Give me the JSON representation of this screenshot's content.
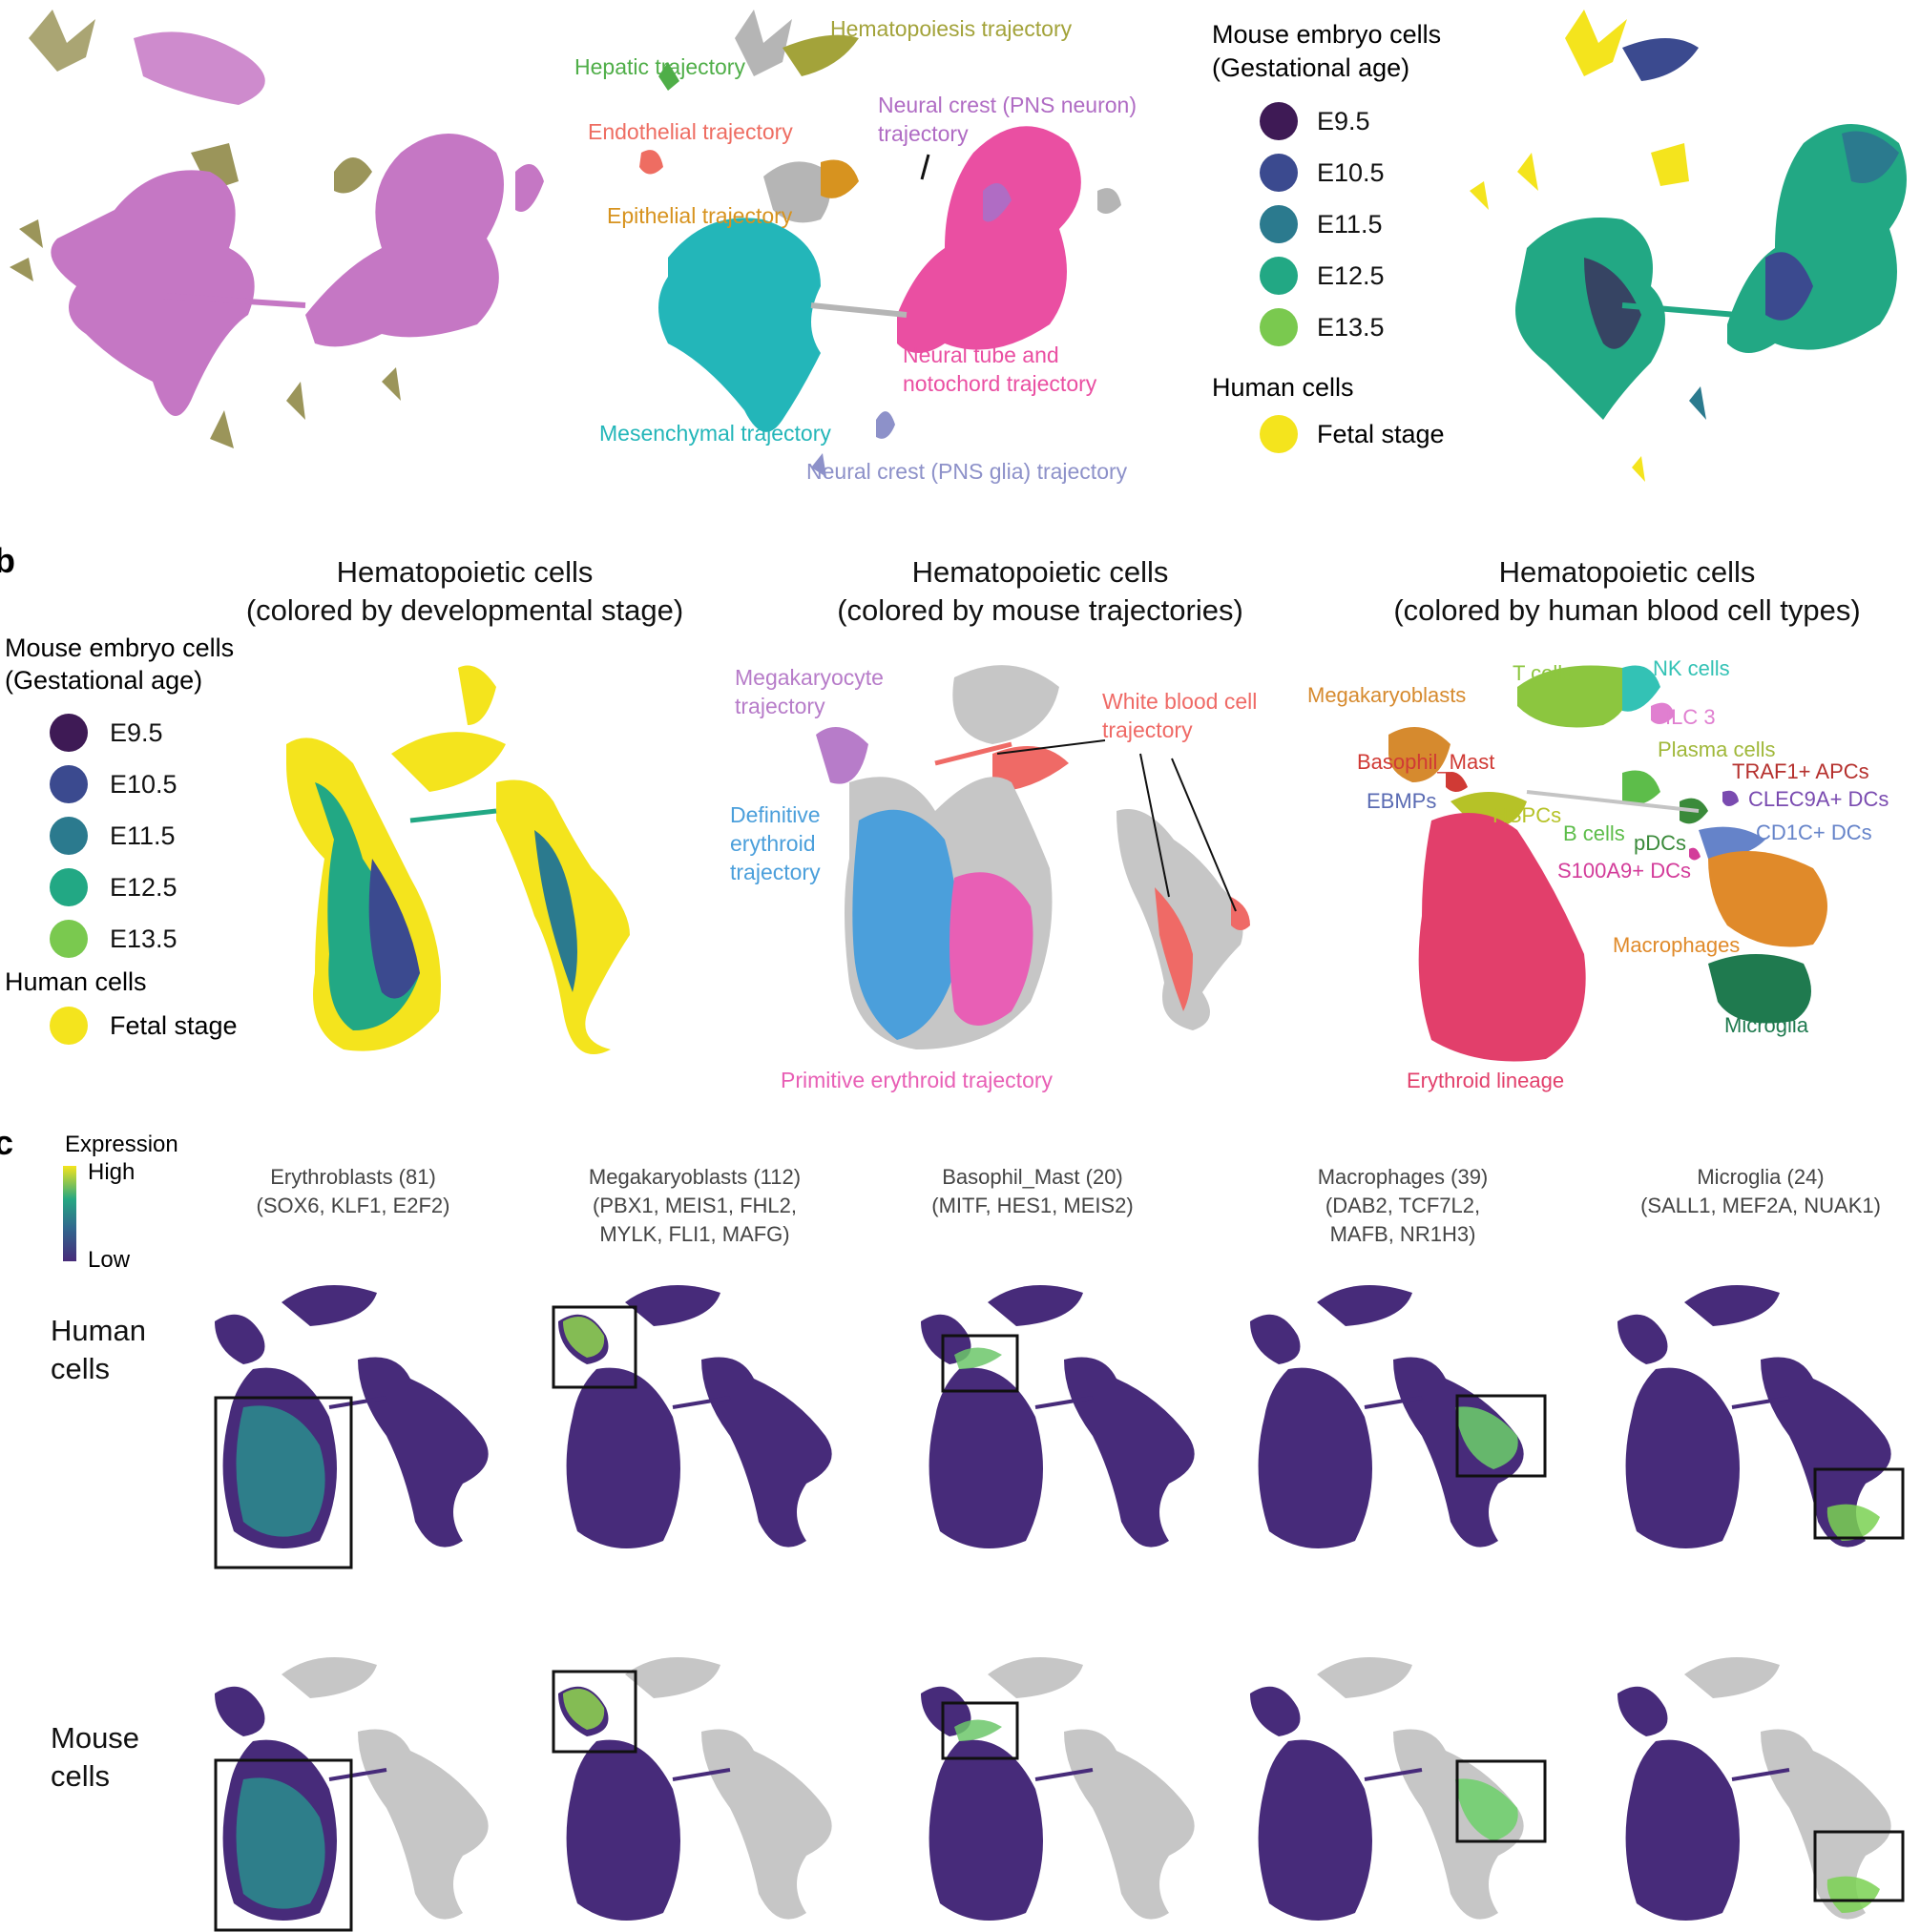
{
  "colors": {
    "stage": [
      "#3e1a55",
      "#3b4a8f",
      "#2b7a8e",
      "#22a884",
      "#7ac94f"
    ],
    "fetal": "#f4e41d",
    "grey": "#c4c4c4",
    "mauve": "#c577c4",
    "olive": "#9b955a",
    "viridis_low": "#472b7a",
    "viridis_mid": "#2a8d8d",
    "viridis_high": "#8fd64e"
  },
  "panel_a": {
    "trajectory_labels": [
      {
        "text": "Hematopoiesis trajectory",
        "color": "#a3a33a"
      },
      {
        "text": "Hepatic trajectory",
        "color": "#4fae48"
      },
      {
        "text": "Neural crest (PNS neuron)",
        "color": "#b06cc4"
      },
      {
        "text": "trajectory",
        "color": "#b06cc4"
      },
      {
        "text": "Endothelial trajectory",
        "color": "#ee6d62"
      },
      {
        "text": "Epithelial trajectory",
        "color": "#d7931f"
      },
      {
        "text": "Neural tube and",
        "color": "#ea4fa2"
      },
      {
        "text": "notochord trajectory",
        "color": "#ea4fa2"
      },
      {
        "text": "Mesenchymal trajectory",
        "color": "#23b6b9"
      },
      {
        "text": "Neural crest (PNS glia) trajectory",
        "color": "#8d91c9"
      }
    ],
    "legend": {
      "mouse_title": [
        "Mouse embryo cells",
        "(Gestational age)"
      ],
      "stages": [
        "E9.5",
        "E10.5",
        "E11.5",
        "E12.5",
        "E13.5"
      ],
      "human_title": "Human cells",
      "human_item": "Fetal stage"
    }
  },
  "panel_b": {
    "label": "b",
    "titles": [
      [
        "Hematopoietic cells",
        "(colored by developmental stage)"
      ],
      [
        "Hematopoietic cells",
        "(colored by mouse trajectories)"
      ],
      [
        "Hematopoietic cells",
        "(colored by human blood cell types)"
      ]
    ],
    "legend": {
      "mouse_title": [
        "Mouse embryo cells",
        "(Gestational age)"
      ],
      "stages": [
        "E9.5",
        "E10.5",
        "E11.5",
        "E12.5",
        "E13.5"
      ],
      "human_title": "Human cells",
      "human_item": "Fetal stage"
    },
    "trajectory_labels": [
      {
        "text": "Megakaryocyte",
        "color": "#b77cc9"
      },
      {
        "text": "trajectory",
        "color": "#b77cc9"
      },
      {
        "text": "White blood cell",
        "color": "#ef6a66"
      },
      {
        "text": "trajectory",
        "color": "#ef6a66"
      },
      {
        "text": "Definitive",
        "color": "#4b9fdb"
      },
      {
        "text": "erythroid",
        "color": "#4b9fdb"
      },
      {
        "text": "trajectory",
        "color": "#4b9fdb"
      },
      {
        "text": "Primitive erythroid trajectory",
        "color": "#e85fb5"
      }
    ],
    "celltype_labels": [
      {
        "text": "T cells",
        "color": "#8cc63f"
      },
      {
        "text": "NK cells",
        "color": "#33c2b5"
      },
      {
        "text": "Megakaryoblasts",
        "color": "#d68a2e"
      },
      {
        "text": "ILC 3",
        "color": "#e07fd0"
      },
      {
        "text": "Plasma cells",
        "color": "#a0b83a"
      },
      {
        "text": "Basophil_Mast",
        "color": "#d03a35"
      },
      {
        "text": "TRAF1+ APCs",
        "color": "#b5302d"
      },
      {
        "text": "CLEC9A+ DCs",
        "color": "#7a4bb0"
      },
      {
        "text": "EBMPs",
        "color": "#5a6bb3"
      },
      {
        "text": "HSPCs",
        "color": "#b6c227"
      },
      {
        "text": "CD1C+ DCs",
        "color": "#6583c9"
      },
      {
        "text": "B cells",
        "color": "#5dbd4a"
      },
      {
        "text": "pDCs",
        "color": "#3a8a3a"
      },
      {
        "text": "S100A9+ DCs",
        "color": "#d33c9a"
      },
      {
        "text": "Macrophages",
        "color": "#e08a2a"
      },
      {
        "text": "Microglia",
        "color": "#1f7a4f"
      },
      {
        "text": "Erythroid lineage",
        "color": "#e23f6b"
      }
    ]
  },
  "panel_c": {
    "label": "c",
    "colorbar": {
      "title": "Expression",
      "high": "High",
      "low": "Low"
    },
    "row_labels": [
      [
        "Human",
        "cells"
      ],
      [
        "Mouse",
        "cells"
      ]
    ],
    "columns": [
      [
        "Erythroblasts (81)",
        "(SOX6, KLF1, E2F2)"
      ],
      [
        "Megakaryoblasts (112)",
        "(PBX1, MEIS1, FHL2,",
        "MYLK, FLI1, MAFG)"
      ],
      [
        "Basophil_Mast (20)",
        "(MITF, HES1, MEIS2)"
      ],
      [
        "Macrophages (39)",
        "(DAB2, TCF7L2,",
        "MAFB, NR1H3)"
      ],
      [
        "Microglia (24)",
        "(SALL1, MEF2A, NUAK1)"
      ]
    ]
  }
}
